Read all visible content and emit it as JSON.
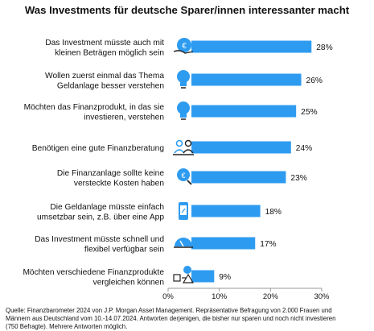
{
  "title": "Was Investments für deutsche Sparer/innen interessanter macht",
  "footnote": [
    "Quelle: Finanzbarometer 2024 von J.P. Morgan Asset Management. Repräsentative Befragung von 2.000 Frauen und",
    "Männern aus Deutschland vom 10.-14.07.2024. Antworten derjenigen, die bisher nur sparen und noch nicht investieren",
    "(750 Befragte). Mehrere Antworten möglich."
  ],
  "colors": {
    "bar": "#2d9bf0",
    "icon": "#2d9bf0",
    "axis": "#9a9a9a",
    "text": "#111111"
  },
  "chart_data": {
    "type": "bar",
    "orientation": "horizontal",
    "categories": [
      [
        "Das Investment müsste auch mit",
        "kleinen Beträgen möglich sein"
      ],
      [
        "Wollen zuerst einmal das Thema",
        "Geldanlage besser verstehen"
      ],
      [
        "Möchten das Finanzprodukt, in das sie",
        "investieren, verstehen"
      ],
      [
        "Benötigen eine gute Finanzberatung"
      ],
      [
        "Die Finanzanlage sollte keine",
        "versteckte Kosten haben"
      ],
      [
        "Die Geldanlage müsste einfach",
        "umsetzbar sein, z.B. über eine App"
      ],
      [
        "Das Investment müsste schnell und",
        "flexibel verfügbar sein"
      ],
      [
        "Möchten verschiedene Finanzprodukte",
        "vergleichen können"
      ]
    ],
    "values": [
      28,
      26,
      25,
      24,
      23,
      18,
      17,
      9
    ],
    "value_labels": [
      "28%",
      "26%",
      "25%",
      "24%",
      "23%",
      "18%",
      "17%",
      "9%"
    ],
    "icons": [
      "coin-hand-icon",
      "lightbulb-icon",
      "lightbulb-icon",
      "advisor-icon",
      "coin-magnifier-icon",
      "smartphone-icon",
      "speedometer-icon",
      "compare-icon"
    ],
    "xlim": [
      0,
      30
    ],
    "xticks": [
      0,
      10,
      20,
      30
    ],
    "xtick_labels": [
      "0%",
      "10%",
      "20%",
      "30%"
    ],
    "grid": false
  }
}
